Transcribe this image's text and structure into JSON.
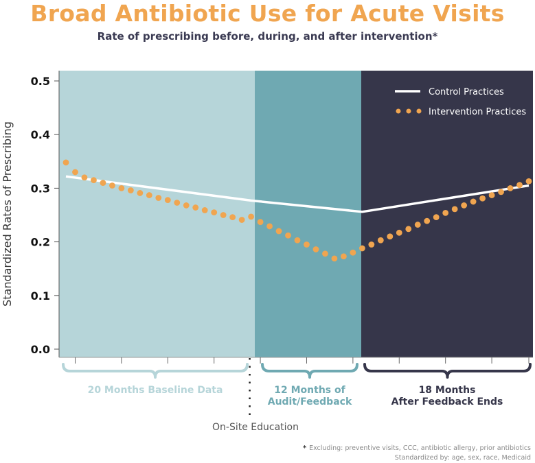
{
  "colors": {
    "title": "#f0a550",
    "subtitle": "#3a3a52",
    "baseline_bg": "#b6d5d9",
    "audit_bg": "#6fa9b2",
    "after_bg": "#36364a",
    "control_line": "#ffffff",
    "intervention_dots": "#f0a550",
    "baseline_label": "#b6d5d9",
    "audit_label": "#6fa9b2",
    "after_label": "#36364a",
    "axis_text": "#111111",
    "axis_title": "#333333"
  },
  "footnotes": {
    "line1": "Excluding: preventive visits, CCC, antibiotic allergy, prior antibiotics",
    "line2": "Standardized by: age, sex, race, Medicaid",
    "marker": "*"
  },
  "chart_data": {
    "type": "line",
    "title": "Broad Antibiotic Use for Acute Visits",
    "subtitle": "Rate of prescribing before, during, and after intervention*",
    "ylabel": "Standardized Rates of Prescribing",
    "ylim": [
      0,
      0.5
    ],
    "yticks": [
      "0.0",
      "0.1",
      "0.2",
      "0.3",
      "0.4",
      "0.5"
    ],
    "ytick_values": [
      0,
      0.1,
      0.2,
      0.3,
      0.4,
      0.5
    ],
    "xlim": [
      0,
      50
    ],
    "x_ticks_months": [
      1,
      6,
      11,
      16,
      21,
      26,
      31,
      36,
      41,
      46,
      50
    ],
    "grid": false,
    "legend_position": "top-right",
    "periods": [
      {
        "label": "20 Months Baseline Data",
        "start": 0,
        "end": 20
      },
      {
        "label": "12 Months of\nAudit/Feedback",
        "start": 20,
        "end": 32
      },
      {
        "label": "18 Months\nAfter Feedback Ends",
        "start": 32,
        "end": 50
      }
    ],
    "annotation": {
      "label": "On-Site Education",
      "x": 20
    },
    "series": [
      {
        "name": "Control Practices",
        "style": "solid",
        "x": [
          0,
          20,
          32,
          50
        ],
        "values": [
          0.322,
          0.277,
          0.256,
          0.305
        ]
      },
      {
        "name": "Intervention Practices",
        "style": "dotted",
        "x": [
          0,
          1,
          2,
          3,
          4,
          5,
          6,
          7,
          8,
          9,
          10,
          11,
          12,
          13,
          14,
          15,
          16,
          17,
          18,
          19,
          20,
          21,
          22,
          23,
          24,
          25,
          26,
          27,
          28,
          29,
          30,
          31,
          32,
          33,
          34,
          35,
          36,
          37,
          38,
          39,
          40,
          41,
          42,
          43,
          44,
          45,
          46,
          47,
          48,
          49,
          50
        ],
        "values": [
          0.348,
          0.33,
          0.32,
          0.315,
          0.31,
          0.305,
          0.3,
          0.296,
          0.291,
          0.287,
          0.282,
          0.278,
          0.273,
          0.268,
          0.264,
          0.259,
          0.255,
          0.25,
          0.246,
          0.241,
          0.247,
          0.237,
          0.229,
          0.22,
          0.212,
          0.203,
          0.195,
          0.186,
          0.178,
          0.169,
          0.173,
          0.18,
          0.188,
          0.195,
          0.203,
          0.21,
          0.217,
          0.224,
          0.232,
          0.239,
          0.246,
          0.254,
          0.261,
          0.268,
          0.275,
          0.281,
          0.287,
          0.293,
          0.3,
          0.306,
          0.313
        ]
      }
    ]
  }
}
